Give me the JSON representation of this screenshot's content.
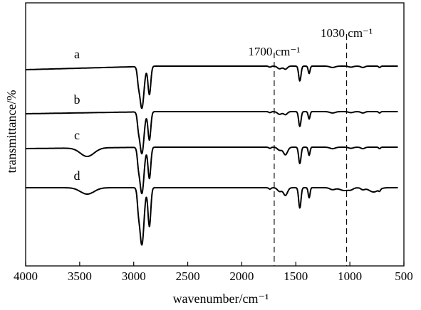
{
  "chart_data": {
    "type": "line",
    "title": "",
    "xlabel": "wavenumber/cm⁻¹",
    "ylabel": "transmittance/%",
    "xlim": [
      4000,
      500
    ],
    "x_reversed": true,
    "x_ticks": [
      4000,
      3500,
      3000,
      2500,
      2000,
      1500,
      1000,
      500
    ],
    "x_tick_labels": [
      "4000",
      "3500",
      "3000",
      "2500",
      "2000",
      "1500",
      "1000",
      "500"
    ],
    "y_ticks_shown": false,
    "grid": false,
    "legend": "labels beside each trace",
    "line_color": "#000000",
    "annotations": [
      {
        "label": "1700 cm⁻¹",
        "x": 1700,
        "style": "dashed"
      },
      {
        "label": "1030 cm⁻¹",
        "x": 1030,
        "style": "dashed"
      }
    ],
    "series": [
      {
        "name": "a",
        "offset": 0.4
      },
      {
        "name": "b",
        "offset": 0.28
      },
      {
        "name": "c",
        "offset": 0.15
      },
      {
        "name": "d",
        "offset": 0.0
      }
    ]
  }
}
